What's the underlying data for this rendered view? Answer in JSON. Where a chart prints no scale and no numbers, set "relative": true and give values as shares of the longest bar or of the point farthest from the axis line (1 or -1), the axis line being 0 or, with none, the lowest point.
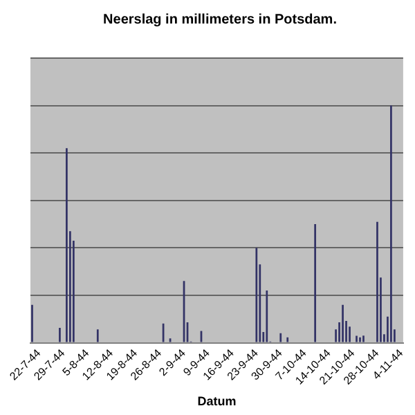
{
  "chart_data": {
    "type": "bar",
    "title": "Neerslag in millimeters in Potsdam.",
    "xlabel": "Datum",
    "relative": true,
    "grid": "y",
    "color": "#333366",
    "categories": [
      null,
      null,
      "22-7-44",
      null,
      null,
      null,
      null,
      null,
      null,
      "29-7-44",
      null,
      null,
      null,
      null,
      null,
      null,
      "5-8-44",
      null,
      null,
      null,
      null,
      null,
      null,
      "12-8-44",
      null,
      null,
      null,
      null,
      null,
      null,
      "19-8-44",
      null,
      null,
      null,
      null,
      null,
      null,
      "26-8-44",
      null,
      null,
      null,
      null,
      null,
      null,
      "2-9-44",
      null,
      null,
      null,
      null,
      null,
      null,
      "9-9-44",
      null,
      null,
      null,
      null,
      null,
      null,
      "16-9-44",
      null,
      null,
      null,
      null,
      null,
      null,
      "23-9-44",
      null,
      null,
      null,
      null,
      null,
      null,
      "30-9-44",
      null,
      null,
      null,
      null,
      null,
      null,
      "7-10-44",
      null,
      null,
      null,
      null,
      null,
      null,
      "14-10-44",
      null,
      null,
      null,
      null,
      null,
      null,
      "21-10-44",
      null,
      null,
      null,
      null,
      null,
      null,
      "28-10-44",
      null,
      null,
      null,
      null,
      null,
      null,
      "4-11-44"
    ],
    "values": [
      0.16,
      0,
      0,
      0,
      0,
      0,
      0,
      0,
      0.063,
      0,
      0.82,
      0.47,
      0.43,
      0,
      0,
      0,
      0,
      0,
      0,
      0.056,
      0,
      0,
      0,
      0,
      0,
      0,
      0,
      0,
      0,
      0,
      0,
      0,
      0,
      0,
      0,
      0,
      0,
      0,
      0.081,
      0,
      0.018,
      0.003,
      0,
      0,
      0.26,
      0.086,
      0.005,
      0,
      0,
      0.05,
      0,
      0,
      0,
      0,
      0,
      0,
      0,
      0,
      0,
      0,
      0,
      0,
      0,
      0,
      0,
      0.4,
      0.33,
      0.045,
      0.22,
      0.005,
      0,
      0,
      0.04,
      0,
      0.023,
      0,
      0,
      0,
      0,
      0,
      0,
      0,
      0.5,
      0,
      0,
      0,
      0,
      0,
      0.056,
      0.086,
      0.16,
      0.092,
      0.068,
      0,
      0.029,
      0.023,
      0.03,
      0,
      0,
      0,
      0.51,
      0.275,
      0.036,
      0.11,
      1,
      0.056,
      0,
      0
    ]
  }
}
